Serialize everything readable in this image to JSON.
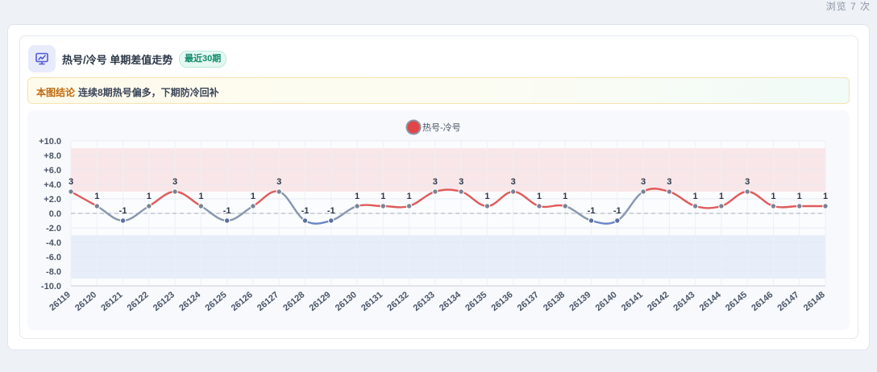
{
  "header": {
    "views": "浏览 7 次"
  },
  "card": {
    "title": "热号/冷号 单期差值走势",
    "badge": "最近30期",
    "conclusion_label": "本图结论",
    "conclusion_text": "连续8期热号偏多，下期防冷回补"
  },
  "chart_data": {
    "type": "line",
    "title": "",
    "series": [
      {
        "name": "热号-冷号",
        "values": [
          3,
          1,
          -1,
          1,
          3,
          1,
          -1,
          1,
          3,
          -1,
          -1,
          1,
          1,
          1,
          3,
          3,
          1,
          3,
          1,
          1,
          -1,
          -1,
          3,
          3,
          1,
          1,
          3,
          1,
          1,
          1
        ]
      }
    ],
    "categories": [
      "26119",
      "26120",
      "26121",
      "26122",
      "26123",
      "26124",
      "26125",
      "26126",
      "26127",
      "26128",
      "26129",
      "26130",
      "26131",
      "26132",
      "26133",
      "26134",
      "26135",
      "26136",
      "26137",
      "26138",
      "26139",
      "26140",
      "26141",
      "26142",
      "26143",
      "26144",
      "26145",
      "26146",
      "26147",
      "26148"
    ],
    "ylim": [
      -10,
      10
    ],
    "yticks": [
      "+10.0",
      "+8.0",
      "+6.0",
      "+4.0",
      "+2.0",
      "0.0",
      "-2.0",
      "-4.0",
      "-6.0",
      "-8.0",
      "-10.0"
    ],
    "ytick_values": [
      10,
      8,
      6,
      4,
      2,
      0,
      -2,
      -4,
      -6,
      -8,
      -10
    ],
    "bands": [
      {
        "from": 3,
        "to": 9,
        "color": "#f9e6e8"
      },
      {
        "from": -9,
        "to": -3,
        "color": "#e7eef9"
      }
    ],
    "reference_line": 0,
    "legend_position": "top-center",
    "colors": {
      "positive": "#e05a5a",
      "negative": "#6b86c8",
      "neutral": "#8797ae",
      "legend_fill": "#e04646"
    },
    "grid": true
  }
}
